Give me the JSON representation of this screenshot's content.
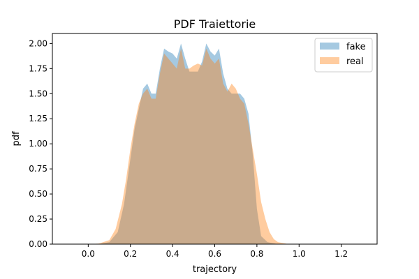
{
  "chart_data": {
    "type": "area",
    "title": "PDF Traiettorie",
    "xlabel": "trajectory",
    "ylabel": "pdf",
    "xlim": [
      -0.17,
      1.37
    ],
    "ylim": [
      0,
      2.1
    ],
    "xticks": [
      "0.0",
      "0.2",
      "0.4",
      "0.6",
      "0.8",
      "1.0",
      "1.2"
    ],
    "xtick_values": [
      0.0,
      0.2,
      0.4,
      0.6,
      0.8,
      1.0,
      1.2
    ],
    "yticks": [
      "0.00",
      "0.25",
      "0.50",
      "0.75",
      "1.00",
      "1.25",
      "1.50",
      "1.75",
      "2.00"
    ],
    "ytick_values": [
      0.0,
      0.25,
      0.5,
      0.75,
      1.0,
      1.25,
      1.5,
      1.75,
      2.0
    ],
    "grid": false,
    "legend_position": "top-right",
    "series": [
      {
        "name": "fake",
        "color": "#1f77b4",
        "alpha": 0.4,
        "x": [
          -0.1,
          0.0,
          0.05,
          0.1,
          0.14,
          0.17,
          0.2,
          0.22,
          0.24,
          0.26,
          0.28,
          0.3,
          0.32,
          0.34,
          0.36,
          0.38,
          0.4,
          0.42,
          0.44,
          0.46,
          0.48,
          0.5,
          0.52,
          0.54,
          0.56,
          0.58,
          0.6,
          0.62,
          0.64,
          0.66,
          0.68,
          0.7,
          0.72,
          0.74,
          0.76,
          0.78,
          0.8,
          0.82,
          0.85,
          0.9,
          0.95,
          1.0,
          1.3
        ],
        "y": [
          0.0,
          0.0,
          0.0,
          0.02,
          0.12,
          0.4,
          0.85,
          1.15,
          1.35,
          1.55,
          1.6,
          1.5,
          1.5,
          1.75,
          1.95,
          1.92,
          1.9,
          1.85,
          2.0,
          1.85,
          1.72,
          1.72,
          1.72,
          1.82,
          2.0,
          1.92,
          1.88,
          1.95,
          1.7,
          1.55,
          1.5,
          1.5,
          1.5,
          1.45,
          1.3,
          0.9,
          0.35,
          0.08,
          0.02,
          0.0,
          0.0,
          0.0,
          0.0
        ]
      },
      {
        "name": "real",
        "color": "#ff7f0e",
        "alpha": 0.4,
        "x": [
          -0.1,
          0.0,
          0.05,
          0.1,
          0.13,
          0.16,
          0.18,
          0.2,
          0.22,
          0.24,
          0.26,
          0.28,
          0.3,
          0.32,
          0.34,
          0.36,
          0.38,
          0.4,
          0.42,
          0.44,
          0.46,
          0.48,
          0.5,
          0.52,
          0.54,
          0.56,
          0.58,
          0.6,
          0.62,
          0.64,
          0.66,
          0.68,
          0.7,
          0.72,
          0.74,
          0.76,
          0.78,
          0.8,
          0.82,
          0.84,
          0.86,
          0.88,
          0.9,
          0.95,
          1.0,
          1.3
        ],
        "y": [
          0.0,
          0.0,
          0.005,
          0.04,
          0.15,
          0.4,
          0.65,
          0.95,
          1.2,
          1.4,
          1.5,
          1.55,
          1.45,
          1.45,
          1.7,
          1.9,
          1.85,
          1.8,
          1.75,
          1.95,
          1.75,
          1.75,
          1.78,
          1.8,
          1.78,
          1.95,
          1.85,
          1.8,
          1.85,
          1.6,
          1.52,
          1.6,
          1.55,
          1.45,
          1.4,
          1.2,
          0.95,
          0.7,
          0.42,
          0.25,
          0.12,
          0.05,
          0.02,
          0.0,
          0.0,
          0.0
        ]
      }
    ]
  }
}
